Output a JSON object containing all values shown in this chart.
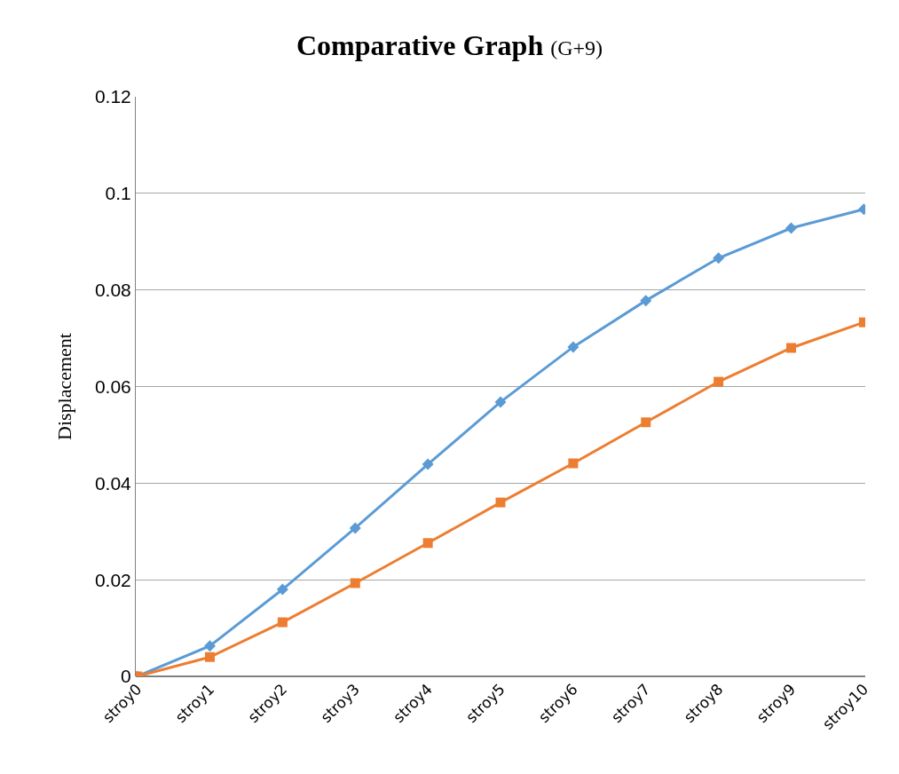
{
  "chart_data": {
    "type": "line",
    "title": "Comparative Graph",
    "subtitle": "(G+9)",
    "ylabel": "Displacement",
    "categories": [
      "stroy0",
      "stroy1",
      "stroy2",
      "stroy3",
      "stroy4",
      "stroy5",
      "stroy6",
      "stroy7",
      "stroy8",
      "stroy9",
      "stroy10"
    ],
    "series": [
      {
        "color": "#5b9bd5",
        "marker": "diamond",
        "values": [
          0,
          0.0063,
          0.018,
          0.0307,
          0.0439,
          0.0568,
          0.0682,
          0.0778,
          0.0866,
          0.0928,
          0.0967
        ]
      },
      {
        "color": "#ed7d31",
        "marker": "square",
        "values": [
          0,
          0.004,
          0.0112,
          0.0193,
          0.0276,
          0.036,
          0.0441,
          0.0526,
          0.061,
          0.068,
          0.0733
        ]
      }
    ],
    "ylim": [
      0,
      0.12
    ],
    "yticks": [
      0,
      0.02,
      0.04,
      0.06,
      0.08,
      0.1,
      0.12
    ],
    "grid": "y",
    "line_style": "solid"
  }
}
